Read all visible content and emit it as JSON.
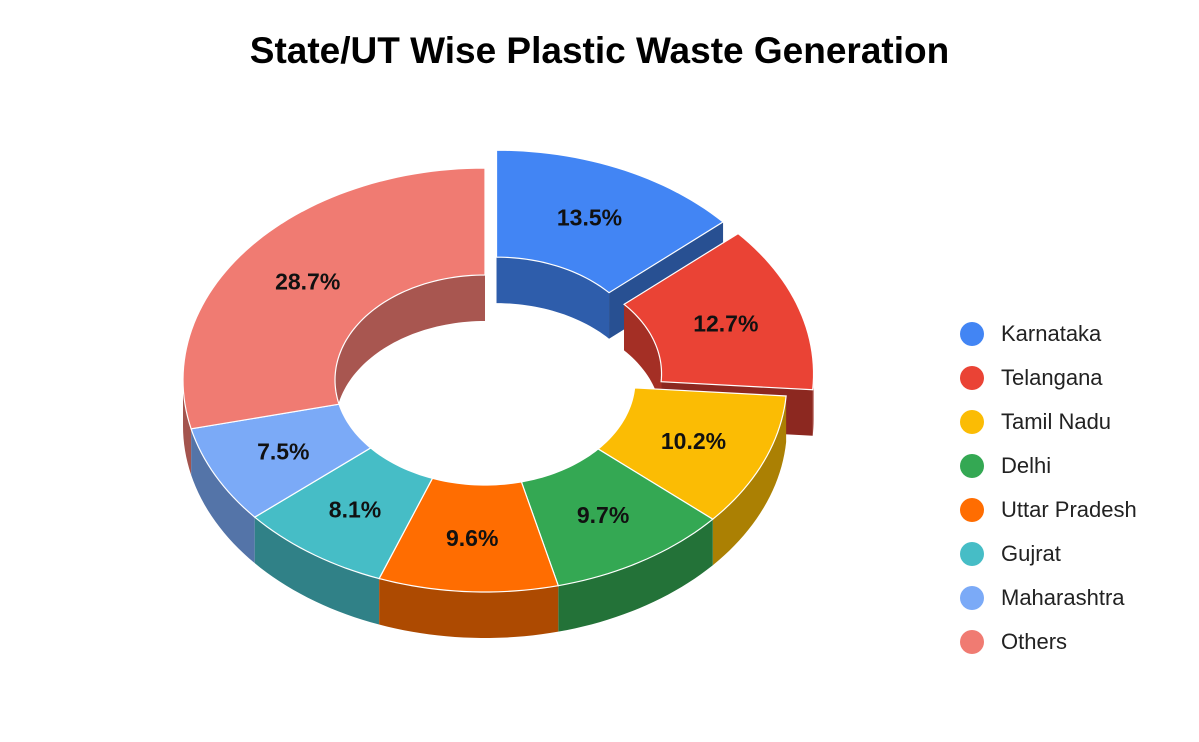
{
  "chart_data": {
    "type": "pie",
    "style": "3d-exploded-donut",
    "title": "State/UT Wise Plastic Waste Generation",
    "categories": [
      "Karnataka",
      "Telangana",
      "Tamil Nadu",
      "Delhi",
      "Uttar Pradesh",
      "Gujrat",
      "Maharashtra",
      "Others"
    ],
    "values": [
      13.5,
      12.7,
      10.2,
      9.7,
      9.6,
      8.1,
      7.5,
      28.7
    ],
    "value_labels": [
      "13.5%",
      "12.7%",
      "10.2%",
      "9.7%",
      "9.6%",
      "8.1%",
      "7.5%",
      "28.7%"
    ],
    "colors": [
      "#4285f4",
      "#ea4335",
      "#fbbc04",
      "#34a853",
      "#ff6d01",
      "#46bdc6",
      "#7baaf7",
      "#f07b72"
    ],
    "exploded": [
      "Karnataka",
      "Telangana"
    ],
    "legend_position": "right"
  }
}
